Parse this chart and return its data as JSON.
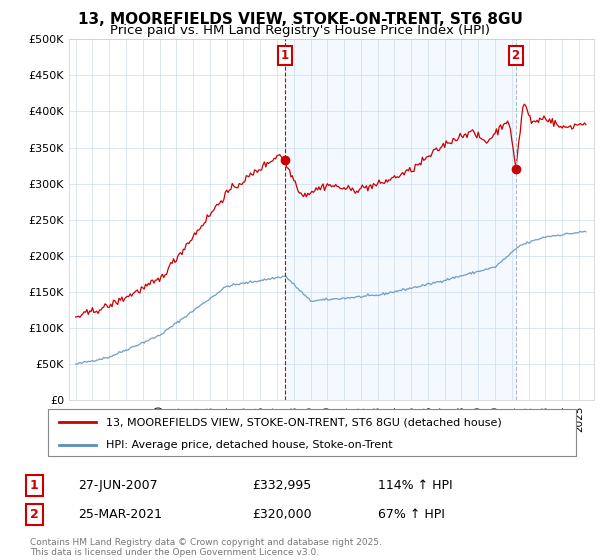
{
  "title": "13, MOOREFIELDS VIEW, STOKE-ON-TRENT, ST6 8GU",
  "subtitle": "Price paid vs. HM Land Registry's House Price Index (HPI)",
  "ylabel_ticks": [
    "£0",
    "£50K",
    "£100K",
    "£150K",
    "£200K",
    "£250K",
    "£300K",
    "£350K",
    "£400K",
    "£450K",
    "£500K"
  ],
  "ytick_values": [
    0,
    50000,
    100000,
    150000,
    200000,
    250000,
    300000,
    350000,
    400000,
    450000,
    500000
  ],
  "ylim": [
    0,
    500000
  ],
  "red_color": "#cc0000",
  "blue_color": "#5b8db8",
  "vline1_color": "#cc0000",
  "vline2_color": "#aabbcc",
  "fill_color": "#ddeeff",
  "fill_alpha": 0.35,
  "marker1_date_x": 2007.49,
  "marker1_price": 332995,
  "marker2_date_x": 2021.23,
  "marker2_price": 320000,
  "legend_line1": "13, MOOREFIELDS VIEW, STOKE-ON-TRENT, ST6 8GU (detached house)",
  "legend_line2": "HPI: Average price, detached house, Stoke-on-Trent",
  "annotation1_date": "27-JUN-2007",
  "annotation1_price": "£332,995",
  "annotation1_hpi": "114% ↑ HPI",
  "annotation2_date": "25-MAR-2021",
  "annotation2_price": "£320,000",
  "annotation2_hpi": "67% ↑ HPI",
  "footer": "Contains HM Land Registry data © Crown copyright and database right 2025.\nThis data is licensed under the Open Government Licence v3.0.",
  "title_fontsize": 11,
  "subtitle_fontsize": 9.5,
  "xlim_left": 1994.6,
  "xlim_right": 2025.9
}
